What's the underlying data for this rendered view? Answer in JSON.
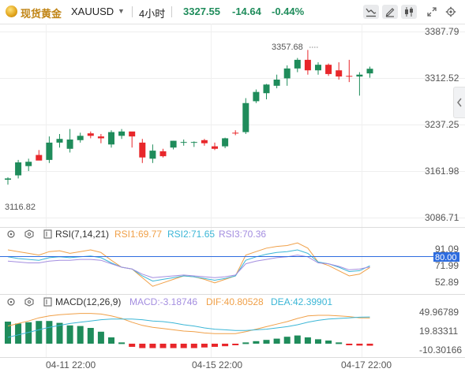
{
  "header": {
    "market_name": "现货黄金",
    "symbol": "XAUUSD",
    "timeframe": "4小时",
    "price": "3327.55",
    "change": "-14.64",
    "change_pct": "-0.44%"
  },
  "colors": {
    "up": "#1f8c5b",
    "down": "#e8272b",
    "price_label": "#1f8c5b",
    "rsi1": "#f0a048",
    "rsi2": "#3bb6d6",
    "rsi3": "#a48ee0",
    "dif": "#f0a048",
    "dea": "#3bb6d6",
    "highlight_line": "#2d6cdf"
  },
  "chart_data": [
    {
      "type": "candlestick",
      "ylim": [
        3086.71,
        3387.79
      ],
      "yticks": [
        "3387.79",
        "3312.52",
        "3237.25",
        "3161.98",
        "3086.71"
      ],
      "annotations": {
        "high": "3357.68",
        "low": "3116.82"
      },
      "x_tick_labels": [
        "04-11 22:00",
        "04-15 22:00",
        "04-17 22:00"
      ],
      "candles": [
        {
          "o": 3148,
          "h": 3152,
          "l": 3140,
          "c": 3150
        },
        {
          "o": 3155,
          "h": 3180,
          "l": 3150,
          "c": 3176
        },
        {
          "o": 3170,
          "h": 3182,
          "l": 3162,
          "c": 3177
        },
        {
          "o": 3188,
          "h": 3196,
          "l": 3182,
          "c": 3179
        },
        {
          "o": 3180,
          "h": 3218,
          "l": 3175,
          "c": 3208
        },
        {
          "o": 3208,
          "h": 3222,
          "l": 3200,
          "c": 3214
        },
        {
          "o": 3198,
          "h": 3230,
          "l": 3192,
          "c": 3213
        },
        {
          "o": 3212,
          "h": 3224,
          "l": 3208,
          "c": 3219
        },
        {
          "o": 3223,
          "h": 3226,
          "l": 3215,
          "c": 3219
        },
        {
          "o": 3218,
          "h": 3222,
          "l": 3207,
          "c": 3215
        },
        {
          "o": 3205,
          "h": 3228,
          "l": 3200,
          "c": 3225
        },
        {
          "o": 3219,
          "h": 3230,
          "l": 3214,
          "c": 3226
        },
        {
          "o": 3226,
          "h": 3225,
          "l": 3200,
          "c": 3218
        },
        {
          "o": 3208,
          "h": 3214,
          "l": 3175,
          "c": 3184
        },
        {
          "o": 3182,
          "h": 3205,
          "l": 3175,
          "c": 3195
        },
        {
          "o": 3194,
          "h": 3198,
          "l": 3184,
          "c": 3186
        },
        {
          "o": 3200,
          "h": 3211,
          "l": 3197,
          "c": 3211
        },
        {
          "o": 3208,
          "h": 3213,
          "l": 3203,
          "c": 3209
        },
        {
          "o": 3209,
          "h": 3210,
          "l": 3201,
          "c": 3209
        },
        {
          "o": 3212,
          "h": 3214,
          "l": 3203,
          "c": 3207
        },
        {
          "o": 3202,
          "h": 3208,
          "l": 3196,
          "c": 3198
        },
        {
          "o": 3202,
          "h": 3216,
          "l": 3199,
          "c": 3215
        },
        {
          "o": 3224,
          "h": 3228,
          "l": 3220,
          "c": 3223
        },
        {
          "o": 3225,
          "h": 3280,
          "l": 3222,
          "c": 3272
        },
        {
          "o": 3275,
          "h": 3294,
          "l": 3272,
          "c": 3290
        },
        {
          "o": 3288,
          "h": 3303,
          "l": 3278,
          "c": 3302
        },
        {
          "o": 3300,
          "h": 3318,
          "l": 3296,
          "c": 3310
        },
        {
          "o": 3312,
          "h": 3333,
          "l": 3300,
          "c": 3328
        },
        {
          "o": 3328,
          "h": 3345,
          "l": 3322,
          "c": 3342
        },
        {
          "o": 3342,
          "h": 3358,
          "l": 3318,
          "c": 3325
        },
        {
          "o": 3325,
          "h": 3338,
          "l": 3318,
          "c": 3334
        },
        {
          "o": 3334,
          "h": 3336,
          "l": 3316,
          "c": 3319
        },
        {
          "o": 3325,
          "h": 3338,
          "l": 3310,
          "c": 3315
        },
        {
          "o": 3316,
          "h": 3342,
          "l": 3306,
          "c": 3315
        },
        {
          "o": 3315,
          "h": 3322,
          "l": 3284,
          "c": 3318
        },
        {
          "o": 3320,
          "h": 3331,
          "l": 3313,
          "c": 3327.55
        }
      ]
    },
    {
      "type": "line",
      "indicator": "RSI",
      "params": "RSI(7,14,21)",
      "legend": [
        "RSI1:69.77",
        "RSI2:71.65",
        "RSI3:70.36"
      ],
      "ylim": [
        40,
        100
      ],
      "yticks": [
        "91.09",
        "71.99",
        "52.89"
      ],
      "highlight": {
        "value": 80.0,
        "label": "80.00"
      },
      "series": [
        {
          "name": "RSI1",
          "values": [
            90,
            88,
            86,
            84,
            88,
            89,
            86,
            88,
            90,
            87,
            78,
            70,
            68,
            58,
            48,
            52,
            56,
            60,
            59,
            56,
            52,
            56,
            60,
            84,
            88,
            92,
            94,
            95,
            98,
            92,
            76,
            72,
            66,
            60,
            62,
            69.77
          ]
        },
        {
          "name": "RSI2",
          "values": [
            82,
            80,
            79,
            78,
            81,
            82,
            81,
            82,
            83,
            81,
            75,
            70,
            68,
            60,
            54,
            56,
            58,
            60,
            59,
            57,
            55,
            57,
            60,
            78,
            82,
            85,
            87,
            88,
            90,
            86,
            76,
            74,
            70,
            65,
            66,
            71.65
          ]
        },
        {
          "name": "RSI3",
          "values": [
            77,
            76,
            75,
            75,
            77,
            78,
            78,
            79,
            79,
            78,
            74,
            70,
            68,
            62,
            58,
            59,
            60,
            61,
            60,
            59,
            58,
            59,
            61,
            74,
            77,
            79,
            81,
            82,
            84,
            82,
            75,
            74,
            71,
            67,
            68,
            70.36
          ]
        }
      ]
    },
    {
      "type": "bar",
      "indicator": "MACD",
      "params": "MACD(12,26,9)",
      "legend": [
        "MACD:-3.18746",
        "DIF:40.80528",
        "DEA:42.39901"
      ],
      "ylim": [
        -20,
        60
      ],
      "yticks": [
        "49.96789",
        "19.83311",
        "-10.30166"
      ],
      "histogram": [
        35,
        32,
        34,
        36,
        36,
        33,
        29,
        28,
        25,
        19,
        10,
        2,
        -5,
        -7,
        -7,
        -7,
        -7,
        -7,
        -7,
        -6,
        -5,
        -4,
        -2,
        2,
        4,
        6,
        8,
        11,
        13,
        10,
        7,
        5,
        2,
        -1,
        -3,
        -3.18746
      ],
      "series": [
        {
          "name": "DIF",
          "values": [
            28,
            32,
            36,
            41,
            44,
            46,
            47,
            48,
            48,
            47,
            44,
            40,
            34,
            29,
            26,
            24,
            22,
            20,
            19,
            17,
            16,
            16,
            16,
            19,
            23,
            27,
            31,
            35,
            40,
            44,
            45,
            45,
            44,
            43,
            41,
            40.80528
          ]
        },
        {
          "name": "DEA",
          "values": [
            10,
            14,
            18,
            22,
            26,
            29,
            32,
            34,
            36,
            38,
            39,
            39,
            39,
            38,
            36,
            35,
            33,
            30,
            28,
            25,
            23,
            22,
            21,
            21,
            22,
            23,
            25,
            27,
            30,
            34,
            37,
            39,
            40,
            41,
            42,
            42.39901
          ]
        }
      ]
    }
  ]
}
